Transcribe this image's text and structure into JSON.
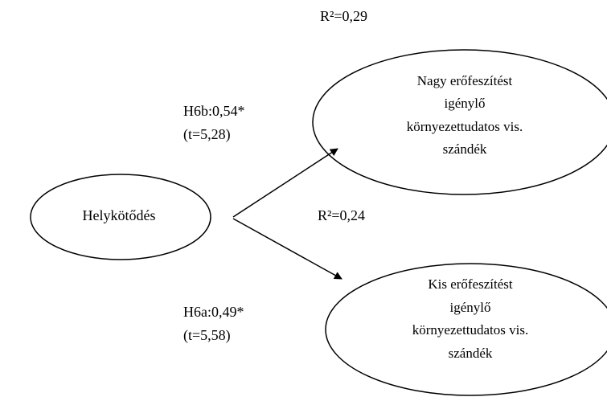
{
  "nodes": [
    {
      "lines": [
        "Helykötődés"
      ]
    },
    {
      "lines": [
        "Nagy erőfeszítést",
        "igénylő",
        "környezettudatos vis.",
        "szándék"
      ],
      "r2": "R²=0,29"
    },
    {
      "lines": [
        "Kis erőfeszítést",
        "igénylő",
        "környezettudatos vis.",
        "szándék"
      ],
      "r2": "R²=0,24"
    }
  ],
  "edges": [
    {
      "label": "H6b:0,54*",
      "t": "(t=5,28)"
    },
    {
      "label": "H6a:0,49*",
      "t": "(t=5,58)"
    }
  ]
}
